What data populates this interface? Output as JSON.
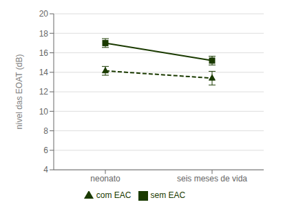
{
  "chart_data": {
    "type": "line",
    "ylabel": "nível das EOAT (dB)",
    "categories": [
      "neonato",
      "seis meses de vida"
    ],
    "series": [
      {
        "name": "sem EAC",
        "color": "#1a3a00",
        "values": [
          17.0,
          15.2
        ],
        "errors": [
          0.45,
          0.45
        ],
        "marker": "square",
        "line_style": "solid"
      },
      {
        "name": "com EAC",
        "color": "#1a3a00",
        "values": [
          14.15,
          13.4
        ],
        "errors": [
          0.45,
          0.7
        ],
        "marker": "triangle",
        "line_style": "dashed"
      }
    ],
    "ylim": [
      4,
      20
    ],
    "yticks": [
      4,
      6,
      8,
      10,
      12,
      14,
      16,
      18,
      20
    ],
    "grid": true,
    "legend": "bottom"
  }
}
